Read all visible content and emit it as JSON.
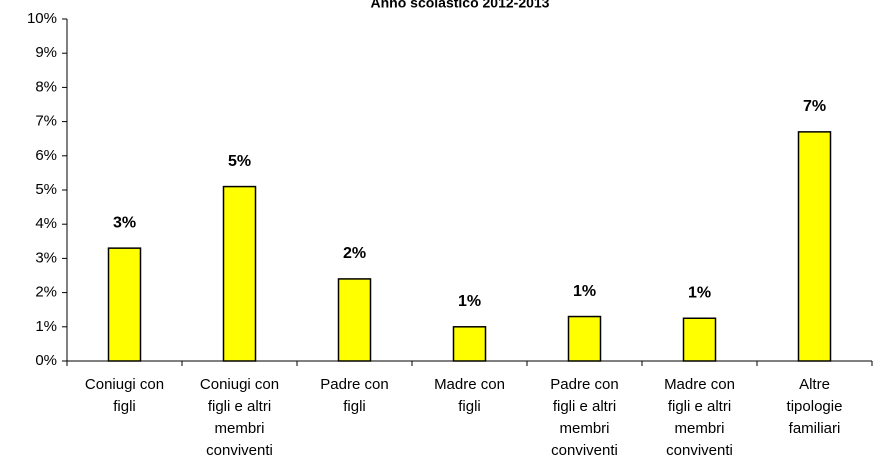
{
  "chart_data": {
    "type": "bar",
    "title": "Anno scolastico 2012-2013",
    "categories": [
      "Coniugi con\nfigli",
      "Coniugi con\nfigli e altri\nmembri\nconviventi",
      "Padre con\nfigli",
      "Madre con\nfigli",
      "Padre con\nfigli e altri\nmembri\nconviventi",
      "Madre con\nfigli e altri\nmembri\nconviventi",
      "Altre\ntipologie\nfamiliari"
    ],
    "values": [
      3.3,
      5.1,
      2.4,
      1.0,
      1.3,
      1.25,
      6.7
    ],
    "value_labels": [
      "3%",
      "5%",
      "2%",
      "1%",
      "1%",
      "1%",
      "7%"
    ],
    "color": "#ffff00",
    "ylim": [
      0,
      10
    ],
    "yticks": [
      {
        "value": 0,
        "label": "0%"
      },
      {
        "value": 1,
        "label": "1%"
      },
      {
        "value": 2,
        "label": "2%"
      },
      {
        "value": 3,
        "label": "3%"
      },
      {
        "value": 4,
        "label": "4%"
      },
      {
        "value": 5,
        "label": "5%"
      },
      {
        "value": 6,
        "label": "6%"
      },
      {
        "value": 7,
        "label": "7%"
      },
      {
        "value": 8,
        "label": "8%"
      },
      {
        "value": 9,
        "label": "9%"
      },
      {
        "value": 10,
        "label": "10%"
      }
    ],
    "grid": false
  }
}
